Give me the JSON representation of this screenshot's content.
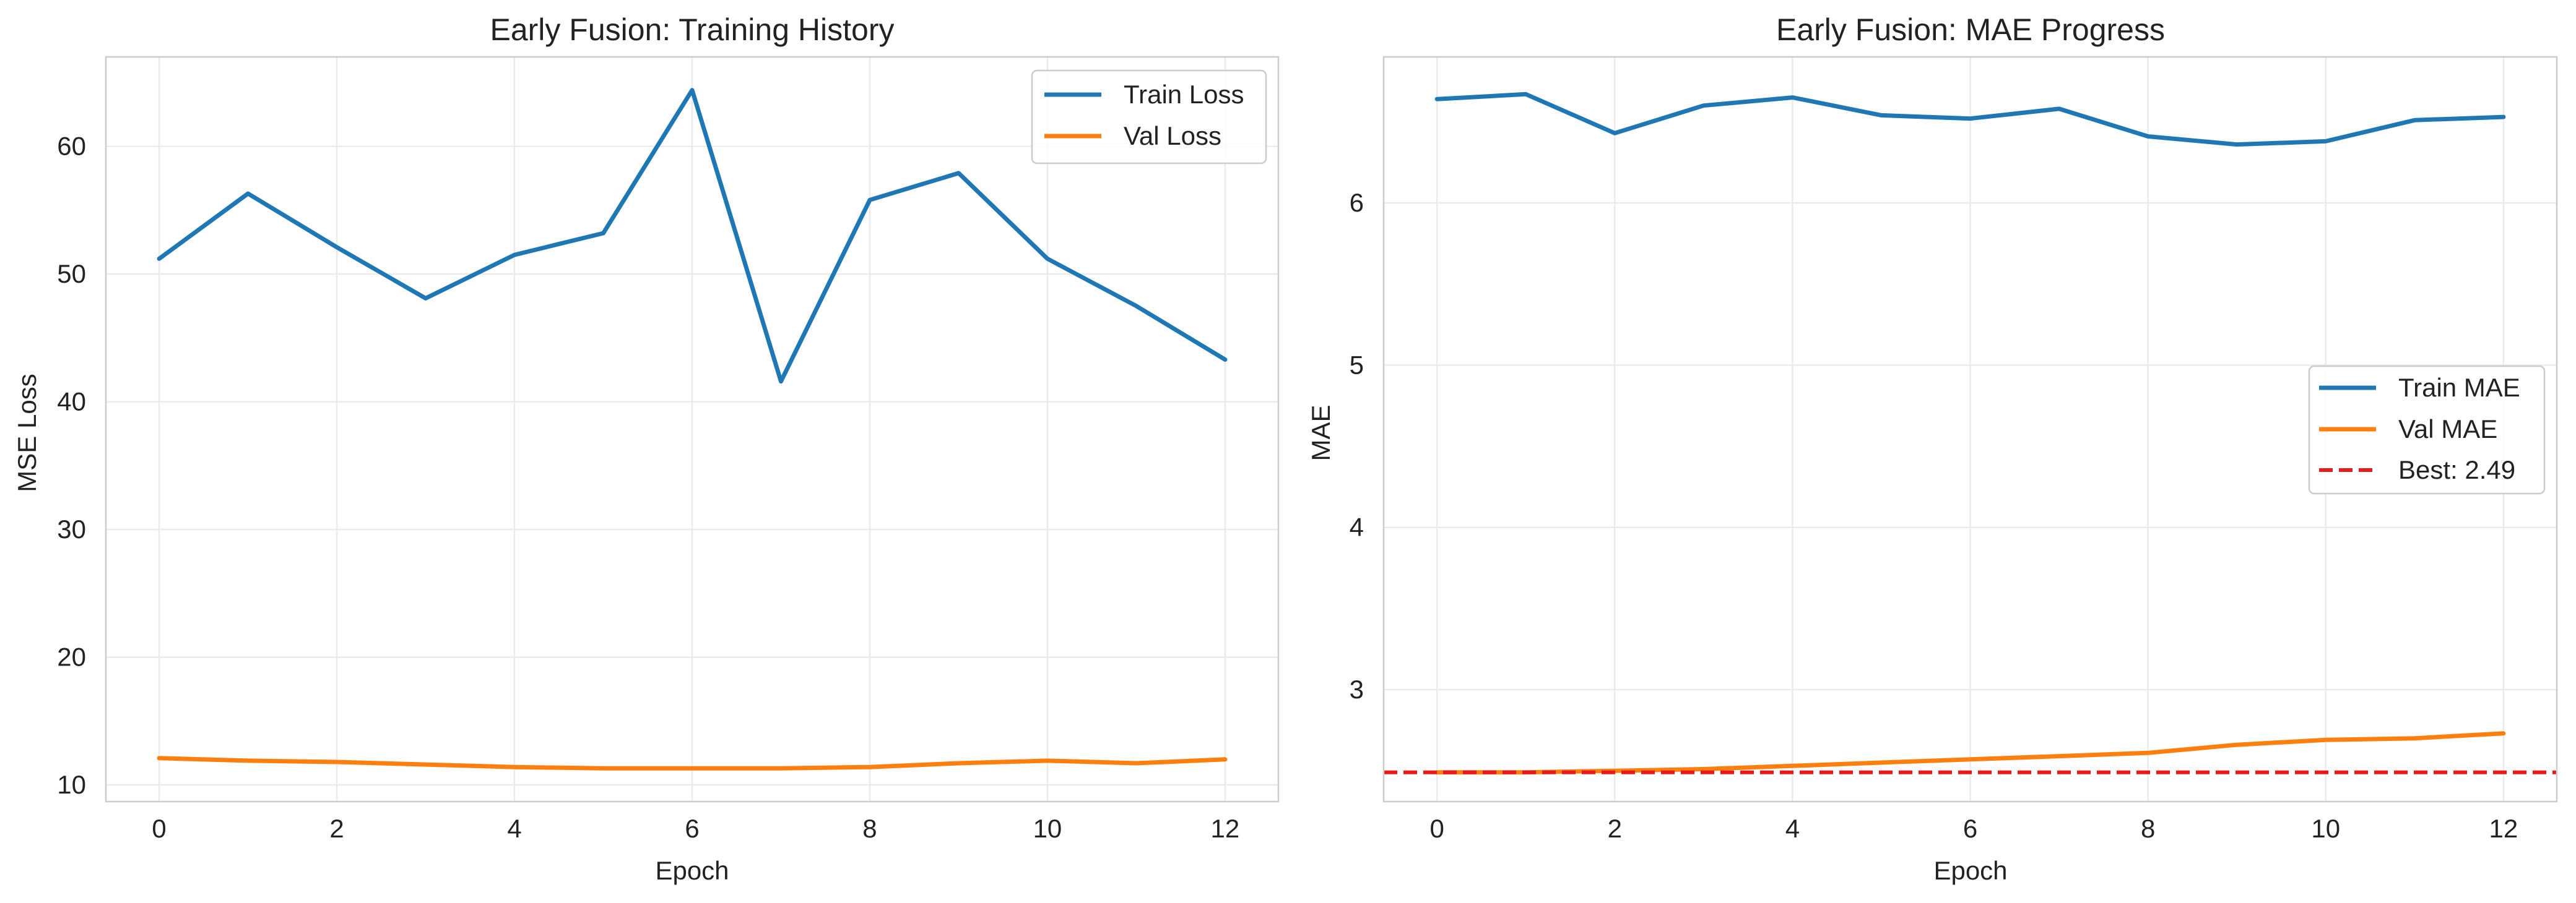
{
  "chart_data": [
    {
      "type": "line",
      "title": "Early Fusion: Training History",
      "xlabel": "Epoch",
      "ylabel": "MSE Loss",
      "xlim": [
        -0.6,
        12.6
      ],
      "ylim": [
        8.7,
        67.0
      ],
      "xticks": [
        0,
        2,
        4,
        6,
        8,
        10,
        12
      ],
      "yticks": [
        10,
        20,
        30,
        40,
        50,
        60
      ],
      "grid": true,
      "legend_position": "top-right",
      "x": [
        0,
        1,
        2,
        3,
        4,
        5,
        6,
        7,
        8,
        9,
        10,
        11,
        12
      ],
      "series": [
        {
          "name": "Train Loss",
          "color": "#1f77b4",
          "style": "solid",
          "values": [
            51.2,
            56.3,
            52.1,
            48.1,
            51.5,
            53.2,
            64.4,
            41.6,
            55.8,
            57.9,
            51.2,
            47.5,
            43.3
          ]
        },
        {
          "name": "Val Loss",
          "color": "#ff7f0e",
          "style": "solid",
          "values": [
            12.1,
            11.9,
            11.8,
            11.6,
            11.4,
            11.3,
            11.3,
            11.3,
            11.4,
            11.7,
            11.9,
            11.7,
            12.0
          ]
        }
      ]
    },
    {
      "type": "line",
      "title": "Early Fusion: MAE Progress",
      "xlabel": "Epoch",
      "ylabel": "MAE",
      "xlim": [
        -0.6,
        12.6
      ],
      "ylim": [
        2.31,
        6.9
      ],
      "xticks": [
        0,
        2,
        4,
        6,
        8,
        10,
        12
      ],
      "yticks": [
        3,
        4,
        5,
        6
      ],
      "grid": true,
      "legend_position": "center-right",
      "x": [
        0,
        1,
        2,
        3,
        4,
        5,
        6,
        7,
        8,
        9,
        10,
        11,
        12
      ],
      "series": [
        {
          "name": "Train MAE",
          "color": "#1f77b4",
          "style": "solid",
          "values": [
            6.64,
            6.67,
            6.43,
            6.6,
            6.65,
            6.54,
            6.52,
            6.58,
            6.41,
            6.36,
            6.38,
            6.51,
            6.53
          ]
        },
        {
          "name": "Val MAE",
          "color": "#ff7f0e",
          "style": "solid",
          "values": [
            2.49,
            2.49,
            2.5,
            2.51,
            2.53,
            2.55,
            2.57,
            2.59,
            2.61,
            2.66,
            2.69,
            2.7,
            2.73
          ]
        },
        {
          "name": "Best: 2.49",
          "color": "#e41a1c",
          "style": "dashed",
          "hline": 2.49
        }
      ]
    }
  ]
}
